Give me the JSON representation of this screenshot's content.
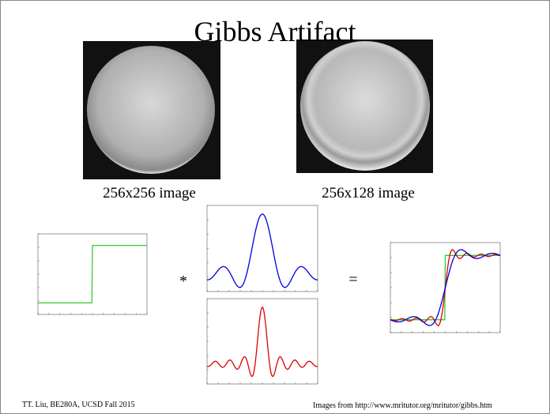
{
  "header": {
    "title": "Gibbs Artifact"
  },
  "images": [
    {
      "caption": "256x256 image"
    },
    {
      "caption": "256x128 image"
    }
  ],
  "operators": {
    "convolve": "*",
    "equals": "="
  },
  "footer": {
    "left": "TT. Liu, BE280A, UCSD Fall 2015",
    "right": "Images from http://www.mritutor.org/mritutor/gibbs.htm"
  }
}
